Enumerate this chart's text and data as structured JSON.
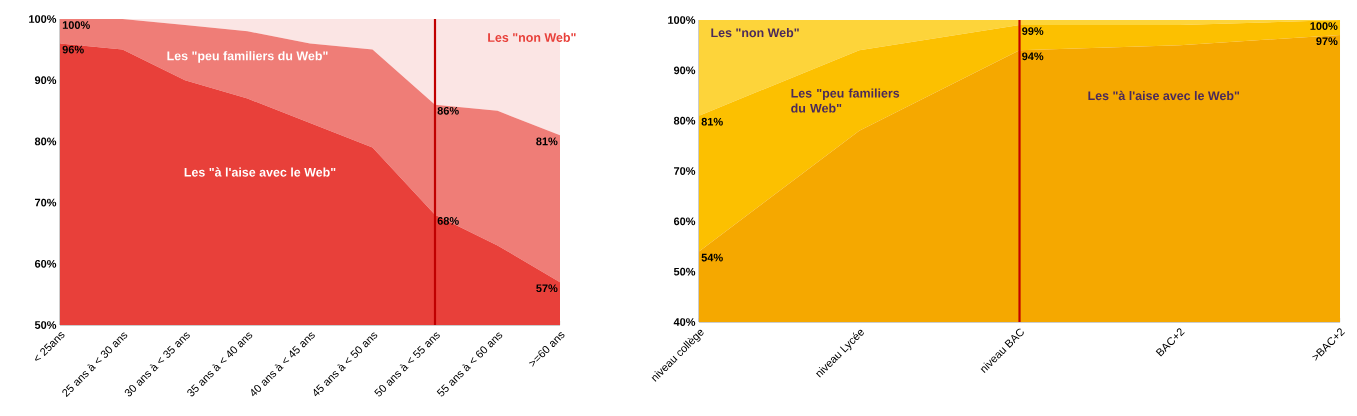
{
  "chart_data": [
    {
      "type": "area",
      "categories": [
        "< 25ans",
        "25 ans à < 30 ans",
        "30 ans à < 35 ans",
        "35 ans à < 40 ans",
        "40 ans à < 45 ans",
        "45 ans à < 50 ans",
        "50 ans à < 55 ans",
        "55 ans à < 60 ans",
        ">=60 ans"
      ],
      "ylim": [
        50,
        100
      ],
      "yticks": [
        {
          "value": 50,
          "label": "50%"
        },
        {
          "value": 60,
          "label": "60%"
        },
        {
          "value": 70,
          "label": "70%"
        },
        {
          "value": 80,
          "label": "80%"
        },
        {
          "value": 90,
          "label": "90%"
        },
        {
          "value": 100,
          "label": "100%"
        }
      ],
      "series": [
        {
          "name": "Les \"à l'aise avec le Web\"",
          "color": "#e8403a",
          "values": [
            96,
            95,
            90,
            87,
            83,
            79,
            68,
            63,
            57
          ],
          "value_labels": [
            "96%",
            null,
            null,
            null,
            null,
            null,
            "68%",
            null,
            "57%"
          ]
        },
        {
          "name": "Les \"peu familiers du Web\"",
          "color": "#ef7d77",
          "values": [
            100,
            100,
            99,
            98,
            96,
            95,
            86,
            85,
            81
          ],
          "value_labels": [
            "100%",
            null,
            null,
            null,
            null,
            null,
            "86%",
            null,
            "81%"
          ]
        },
        {
          "name": "Les \"non Web\"",
          "color": "#fbe5e4",
          "values": [
            100,
            100,
            100,
            100,
            100,
            100,
            100,
            100,
            100
          ]
        }
      ],
      "ref_lines": [
        {
          "axis": "x",
          "value": "50 ans à < 55 ans",
          "color": "#c00000"
        }
      ]
    },
    {
      "type": "area",
      "categories": [
        "niveau collège",
        "niveau Lycée",
        "niveau BAC",
        "BAC+2",
        ">BAC+2"
      ],
      "ylim": [
        40,
        100
      ],
      "yticks": [
        {
          "value": 40,
          "label": "40%"
        },
        {
          "value": 50,
          "label": "50%"
        },
        {
          "value": 60,
          "label": "60%"
        },
        {
          "value": 70,
          "label": "70%"
        },
        {
          "value": 80,
          "label": "80%"
        },
        {
          "value": 90,
          "label": "90%"
        },
        {
          "value": 100,
          "label": "100%"
        }
      ],
      "series": [
        {
          "name": "Les \"à l'aise avec le Web\"",
          "color": "#f5a800",
          "values": [
            54,
            78,
            94,
            95,
            97
          ],
          "value_labels": [
            "54%",
            null,
            "94%",
            null,
            "97%"
          ]
        },
        {
          "name": "Les \"peu familiers du Web\"",
          "color": "#fcc000",
          "values": [
            81,
            94,
            99,
            99,
            100
          ],
          "value_labels": [
            "81%",
            null,
            "99%",
            null,
            "100%"
          ]
        },
        {
          "name": "Les \"non Web\"",
          "color": "#fdd43a",
          "values": [
            100,
            100,
            100,
            100,
            100
          ]
        }
      ],
      "ref_lines": [
        {
          "axis": "x",
          "value": "niveau BAC",
          "color": "#c00000"
        }
      ]
    }
  ]
}
